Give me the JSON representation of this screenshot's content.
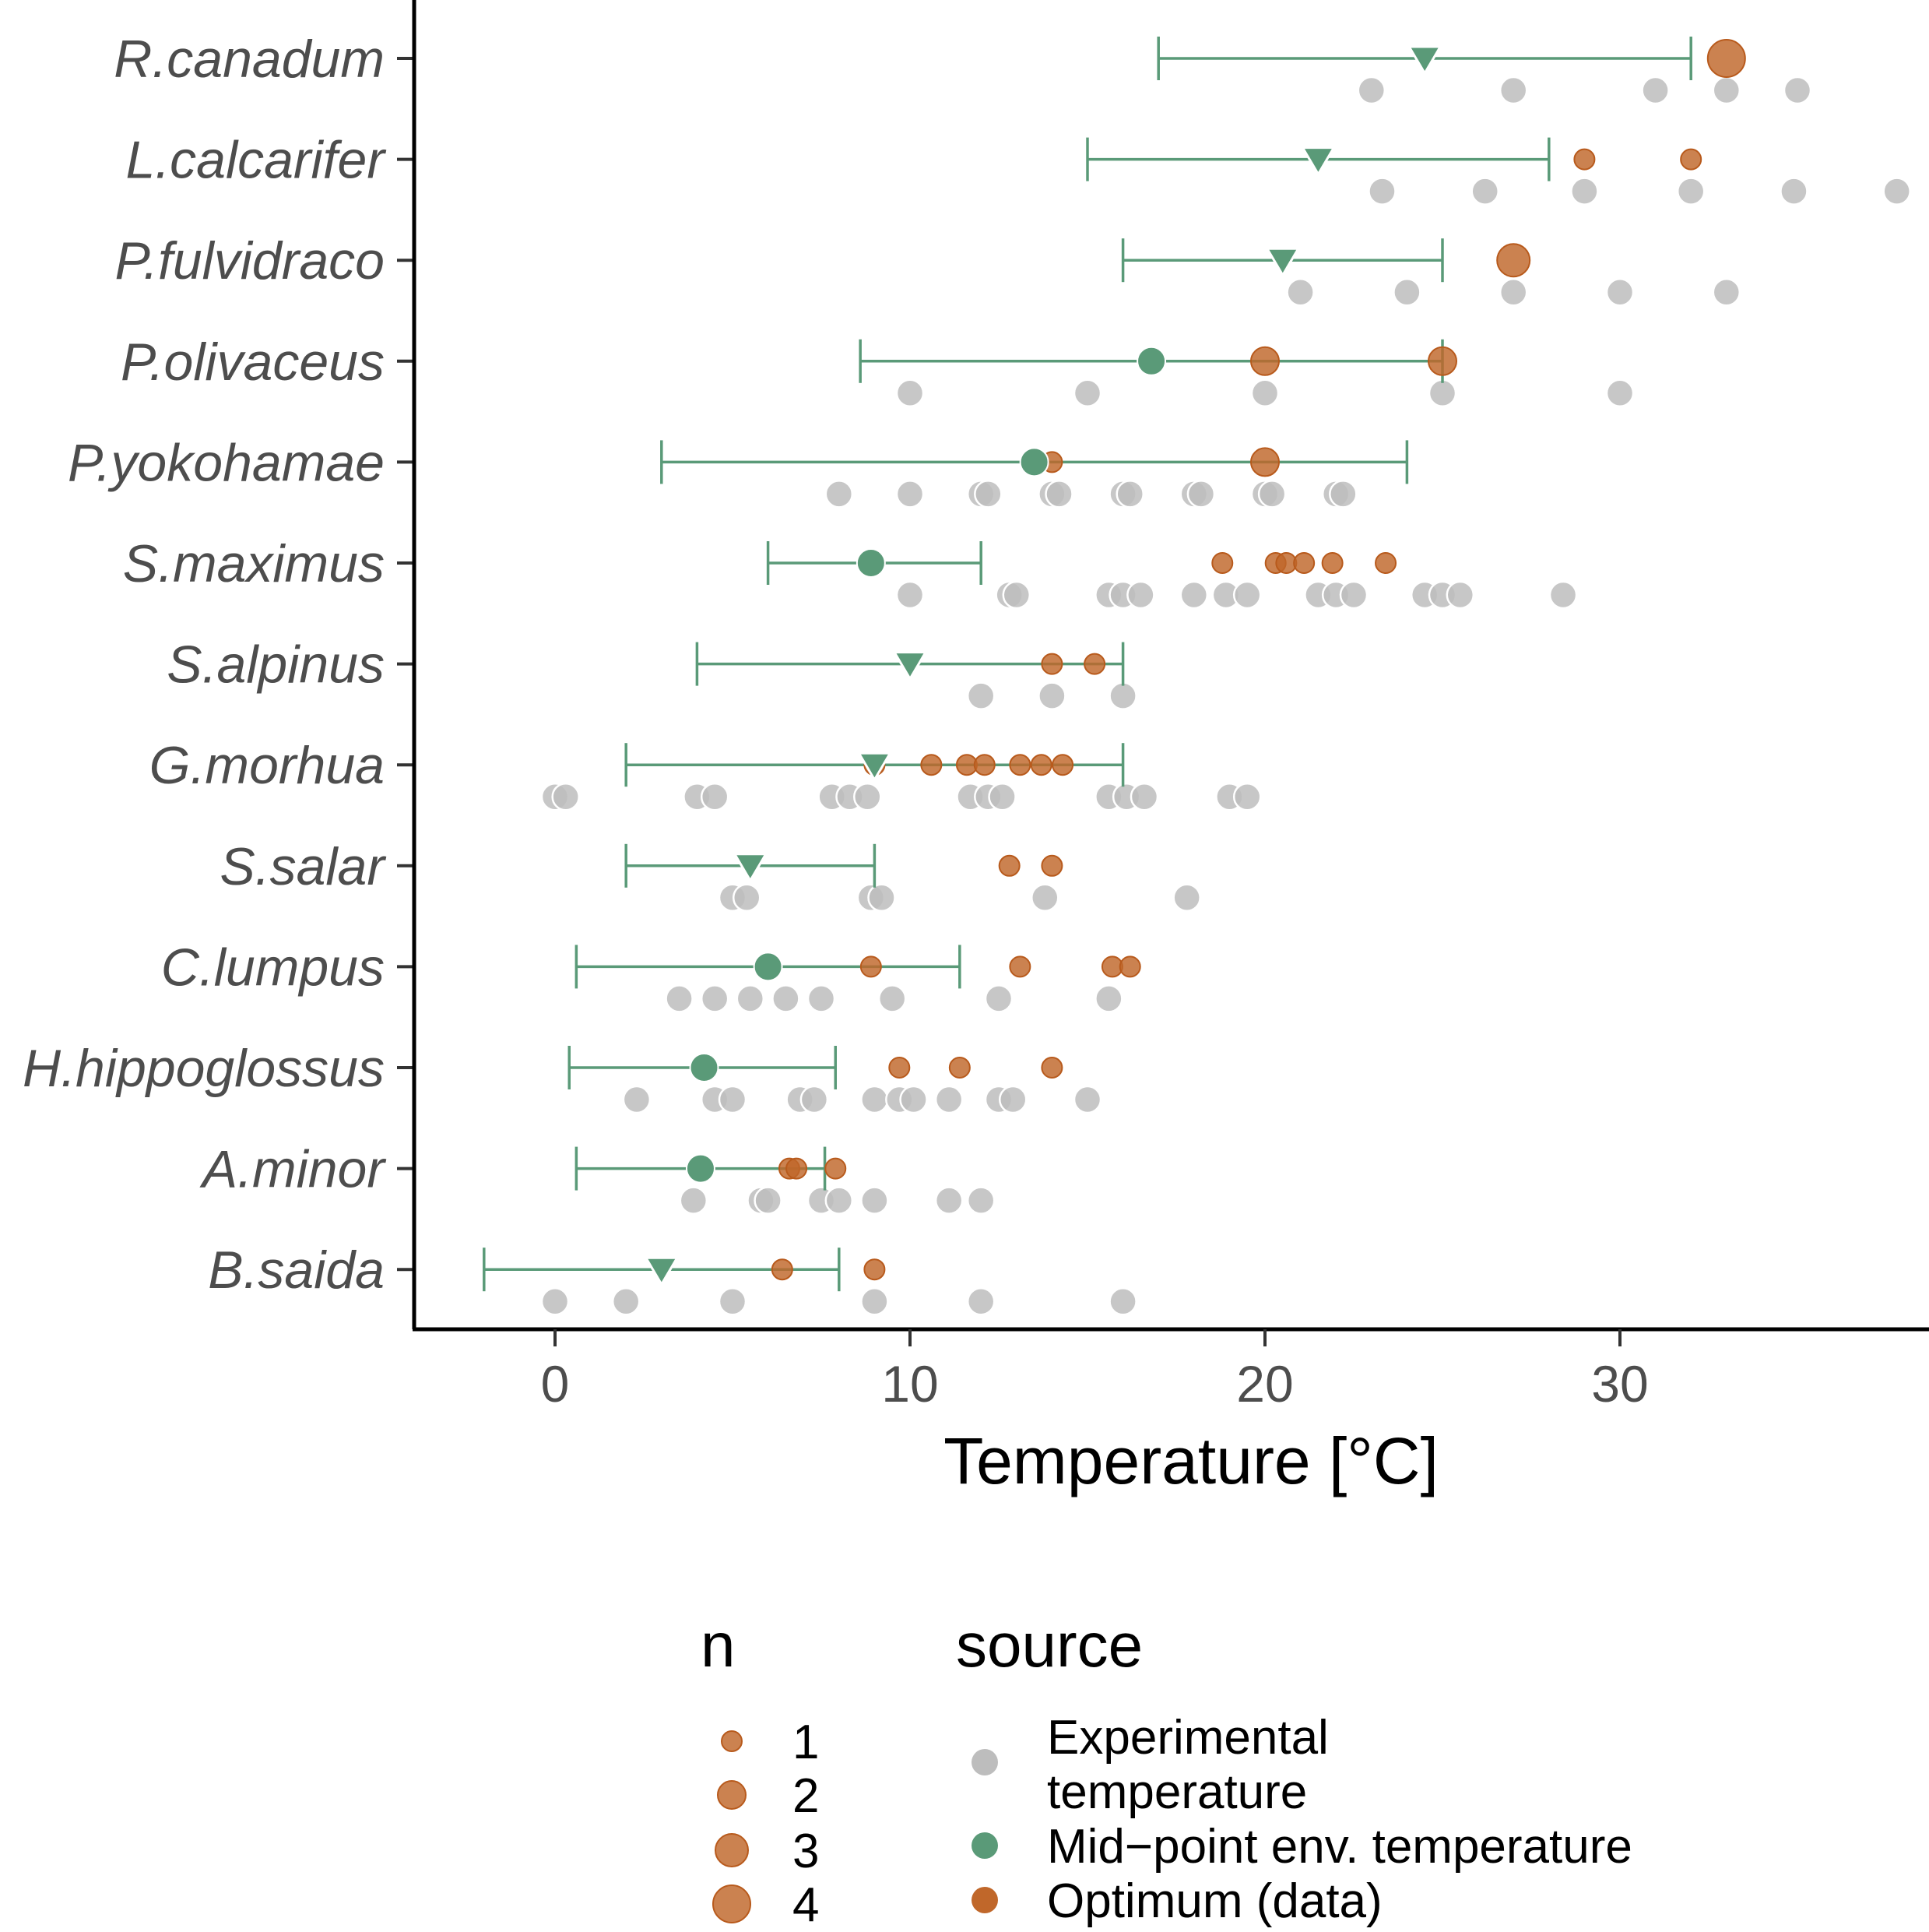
{
  "chart_data": {
    "type": "scatter",
    "title": "",
    "xlabel": "Temperature [°C]",
    "ylabel": "",
    "xlim": [
      -4,
      38
    ],
    "x_ticks": [
      0,
      10,
      20,
      30
    ],
    "grid": false,
    "legend_position": "bottom",
    "colors": {
      "experimental": "#bdbdbd",
      "midpoint": "#5a9a78",
      "optimum": "#c0672a"
    },
    "species": [
      {
        "name": "R.canadum",
        "env_min": 17,
        "env_max": 32,
        "midpoint": 24.5,
        "midpoint_shape": "triangle",
        "optima": [
          {
            "x": 33,
            "n": 4
          }
        ],
        "experimental": [
          23,
          27,
          31,
          33,
          35
        ]
      },
      {
        "name": "L.calcarifer",
        "env_min": 15,
        "env_max": 28,
        "midpoint": 21.5,
        "midpoint_shape": "triangle",
        "optima": [
          {
            "x": 29,
            "n": 1
          },
          {
            "x": 32,
            "n": 1
          }
        ],
        "experimental": [
          23.3,
          26.2,
          29,
          32,
          34.9,
          37.8
        ]
      },
      {
        "name": "P.fulvidraco",
        "env_min": 16,
        "env_max": 25,
        "midpoint": 20.5,
        "midpoint_shape": "triangle",
        "optima": [
          {
            "x": 27,
            "n": 3
          }
        ],
        "experimental": [
          21,
          24,
          27,
          30,
          33
        ]
      },
      {
        "name": "P.olivaceus",
        "env_min": 8.6,
        "env_max": 25,
        "midpoint": 16.8,
        "midpoint_shape": "circle",
        "optima": [
          {
            "x": 20,
            "n": 2
          },
          {
            "x": 25,
            "n": 2
          }
        ],
        "experimental": [
          10,
          15,
          20,
          25,
          30
        ]
      },
      {
        "name": "P.yokohamae",
        "env_min": 3,
        "env_max": 24,
        "midpoint": 13.5,
        "midpoint_shape": "circle",
        "optima": [
          {
            "x": 14,
            "n": 1
          },
          {
            "x": 20,
            "n": 2
          }
        ],
        "experimental": [
          8,
          10,
          12,
          12.2,
          14,
          14.2,
          16,
          16.2,
          18,
          18.2,
          20,
          20.2,
          22,
          22.2
        ]
      },
      {
        "name": "S.maximus",
        "env_min": 6,
        "env_max": 12,
        "midpoint": 8.9,
        "midpoint_shape": "circle",
        "optima": [
          {
            "x": 18.8,
            "n": 1
          },
          {
            "x": 20.3,
            "n": 1
          },
          {
            "x": 20.6,
            "n": 1
          },
          {
            "x": 21.1,
            "n": 1
          },
          {
            "x": 21.9,
            "n": 1
          },
          {
            "x": 23.4,
            "n": 1
          }
        ],
        "experimental": [
          10,
          12.8,
          13,
          15.6,
          16,
          16.5,
          18,
          18.9,
          19.5,
          21.5,
          22,
          22.5,
          24.5,
          25,
          25.5,
          28.4
        ]
      },
      {
        "name": "S.alpinus",
        "env_min": 4,
        "env_max": 16,
        "midpoint": 10,
        "midpoint_shape": "triangle",
        "optima": [
          {
            "x": 14,
            "n": 1
          },
          {
            "x": 15.2,
            "n": 1
          }
        ],
        "experimental": [
          12,
          14,
          16
        ]
      },
      {
        "name": "G.morhua",
        "env_min": 2,
        "env_max": 16,
        "midpoint": 9,
        "midpoint_shape": "triangle",
        "optima": [
          {
            "x": 9,
            "n": 1
          },
          {
            "x": 10.6,
            "n": 1
          },
          {
            "x": 11.6,
            "n": 1
          },
          {
            "x": 12.1,
            "n": 1
          },
          {
            "x": 13.1,
            "n": 1
          },
          {
            "x": 13.7,
            "n": 1
          },
          {
            "x": 14.3,
            "n": 1
          }
        ],
        "experimental": [
          0,
          0.3,
          4,
          4.5,
          7.8,
          8.3,
          8.8,
          11.7,
          12.2,
          12.6,
          15.6,
          16.1,
          16.6,
          19,
          19.5
        ]
      },
      {
        "name": "S.salar",
        "env_min": 2,
        "env_max": 9,
        "midpoint": 5.5,
        "midpoint_shape": "triangle",
        "optima": [
          {
            "x": 12.8,
            "n": 1
          },
          {
            "x": 14,
            "n": 1
          }
        ],
        "experimental": [
          5,
          5.4,
          8.9,
          9.2,
          13.8,
          17.8
        ]
      },
      {
        "name": "C.lumpus",
        "env_min": 0.6,
        "env_max": 11.4,
        "midpoint": 6,
        "midpoint_shape": "circle",
        "optima": [
          {
            "x": 8.9,
            "n": 1
          },
          {
            "x": 13.1,
            "n": 1
          },
          {
            "x": 15.7,
            "n": 1
          },
          {
            "x": 16.2,
            "n": 1
          }
        ],
        "experimental": [
          3.5,
          4.5,
          5.5,
          6.5,
          7.5,
          9.5,
          12.5,
          15.6
        ]
      },
      {
        "name": "H.hippoglossus",
        "env_min": 0.4,
        "env_max": 7.9,
        "midpoint": 4.2,
        "midpoint_shape": "circle",
        "optima": [
          {
            "x": 9.7,
            "n": 1
          },
          {
            "x": 11.4,
            "n": 1
          },
          {
            "x": 14,
            "n": 1
          }
        ],
        "experimental": [
          2.3,
          4.5,
          5,
          6.9,
          7.3,
          9,
          9.7,
          10.1,
          11.1,
          12.5,
          12.9,
          15
        ]
      },
      {
        "name": "A.minor",
        "env_min": 0.6,
        "env_max": 7.6,
        "midpoint": 4.1,
        "midpoint_shape": "circle",
        "optima": [
          {
            "x": 6.6,
            "n": 1
          },
          {
            "x": 6.8,
            "n": 1
          },
          {
            "x": 7.9,
            "n": 1
          }
        ],
        "experimental": [
          3.9,
          5.8,
          6,
          7.5,
          8,
          9,
          11.1,
          12
        ]
      },
      {
        "name": "B.saida",
        "env_min": -2,
        "env_max": 8,
        "midpoint": 3,
        "midpoint_shape": "triangle",
        "optima": [
          {
            "x": 6.4,
            "n": 1
          },
          {
            "x": 9,
            "n": 1
          }
        ],
        "experimental": [
          0,
          2,
          5,
          9,
          12,
          16
        ]
      }
    ],
    "legend": {
      "n": {
        "title": "n",
        "entries": [
          {
            "label": "1",
            "n": 1
          },
          {
            "label": "2",
            "n": 2
          },
          {
            "label": "3",
            "n": 3
          },
          {
            "label": "4",
            "n": 4
          }
        ]
      },
      "source": {
        "title": "source",
        "entries": [
          {
            "label_lines": [
              "Experimental",
              "temperature"
            ],
            "color": "#bdbdbd"
          },
          {
            "label_lines": [
              "Mid−point env. temperature"
            ],
            "color": "#5a9a78"
          },
          {
            "label_lines": [
              "Optimum (data)"
            ],
            "color": "#c0672a"
          }
        ]
      }
    }
  }
}
